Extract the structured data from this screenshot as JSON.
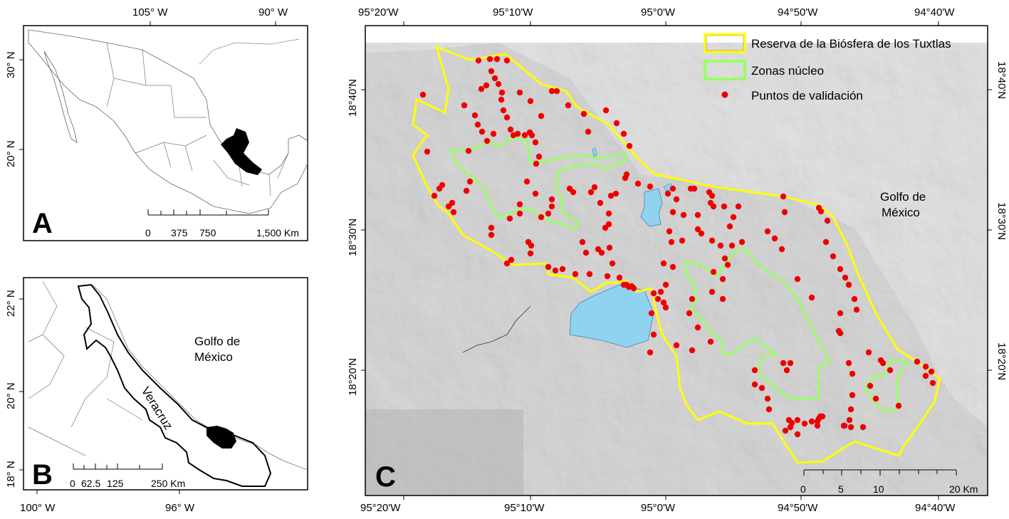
{
  "panel_a": {
    "letter": "A",
    "lon_ticks": [
      "105° W",
      "90° W"
    ],
    "lat_ticks": [
      "30° N",
      "20° N"
    ],
    "scalebar_labels": [
      "0",
      "375",
      "750",
      "1,500 Km"
    ]
  },
  "panel_b": {
    "letter": "B",
    "lon_ticks": [
      "100° W",
      "96° W"
    ],
    "lat_ticks": [
      "22° N",
      "20° N",
      "18° N"
    ],
    "sea_label_1": "Golfo de",
    "sea_label_2": "México",
    "state_label": "Veracruz",
    "scalebar_labels": [
      "0",
      "62.5",
      "125",
      "250 Km"
    ]
  },
  "panel_c": {
    "letter": "C",
    "lon_ticks": [
      "95°20'W",
      "95°10'W",
      "95°0'W",
      "94°50'W",
      "94°40'W"
    ],
    "lat_ticks": [
      "18°40'N",
      "18°30'N",
      "18°20'N"
    ],
    "sea_label_1": "Golfo de",
    "sea_label_2": "México",
    "scalebar_labels": [
      "0",
      "5",
      "10",
      "20 Km"
    ],
    "legend": [
      {
        "label": "Reserva de la Biósfera de los Tuxtlas",
        "color": "#ffff00",
        "kind": "box-yellow"
      },
      {
        "label": "Zonas núcleo",
        "color": "#99ff66",
        "kind": "box-green"
      },
      {
        "label": "Puntos de validación",
        "color": "#ee0000",
        "kind": "dot"
      }
    ]
  },
  "colors": {
    "reserve_outline": "#ffff00",
    "core_zone": "#99ff66",
    "points": "#ee0000",
    "water": "#8fd3f0",
    "relief": "#b4b4b4"
  }
}
